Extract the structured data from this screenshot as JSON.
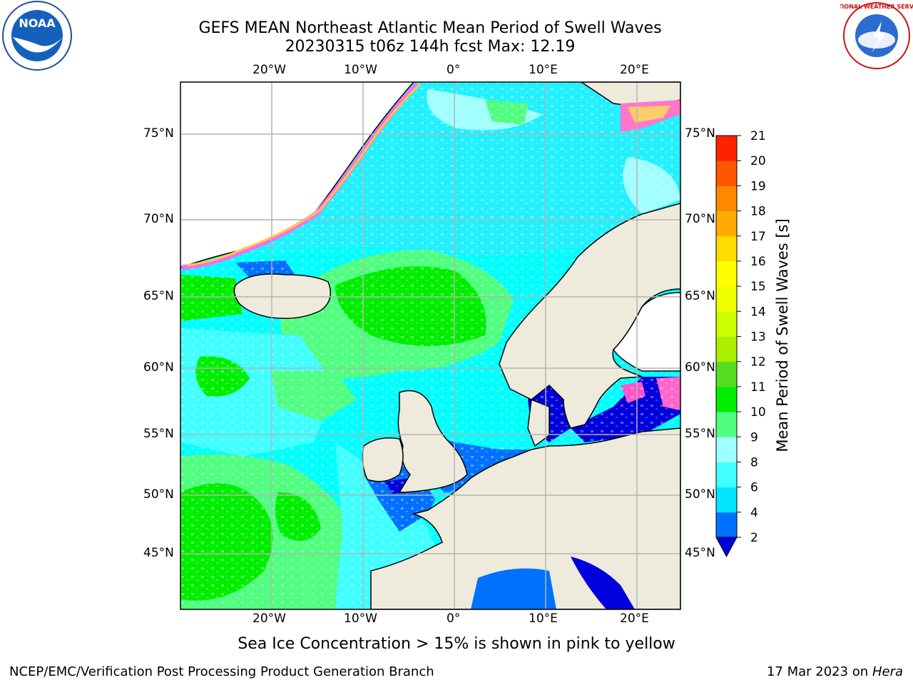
{
  "title_line1": "GEFS MEAN Northeast Atlantic Mean Period of Swell Waves",
  "title_line2": "20230315 t06z 144h fcst   Max: 12.19",
  "lon_labels": [
    "20°W",
    "10°W",
    "0°",
    "10°E",
    "20°E"
  ],
  "lat_labels": [
    "75°N",
    "70°N",
    "65°N",
    "60°N",
    "55°N",
    "50°N",
    "45°N"
  ],
  "colorbar": {
    "title": "Mean Period of Swell Waves [s]",
    "ticks": [
      "2",
      "4",
      "6",
      "8",
      "9",
      "10",
      "11",
      "12",
      "13",
      "14",
      "15",
      "16",
      "17",
      "18",
      "19",
      "20",
      "21"
    ],
    "colors": [
      "#0070ff",
      "#00e6ff",
      "#40ffff",
      "#a0ffff",
      "#50ff80",
      "#00ee00",
      "#55dd22",
      "#aaee00",
      "#ccff00",
      "#eeff00",
      "#ffff00",
      "#ffdd00",
      "#ffaa00",
      "#ff8800",
      "#ff5500",
      "#ff2200"
    ],
    "under_color": "#0000dd"
  },
  "ice_note": "Sea Ice Concentration > 15% is shown in pink to yellow",
  "footer_left": "NCEP/EMC/Verification Post Processing Product Generation Branch",
  "footer_date": "17 Mar 2023 on",
  "footer_host": "Hera",
  "logos": {
    "left": "NOAA",
    "right": "NATIONAL WEATHER SERVICE"
  }
}
